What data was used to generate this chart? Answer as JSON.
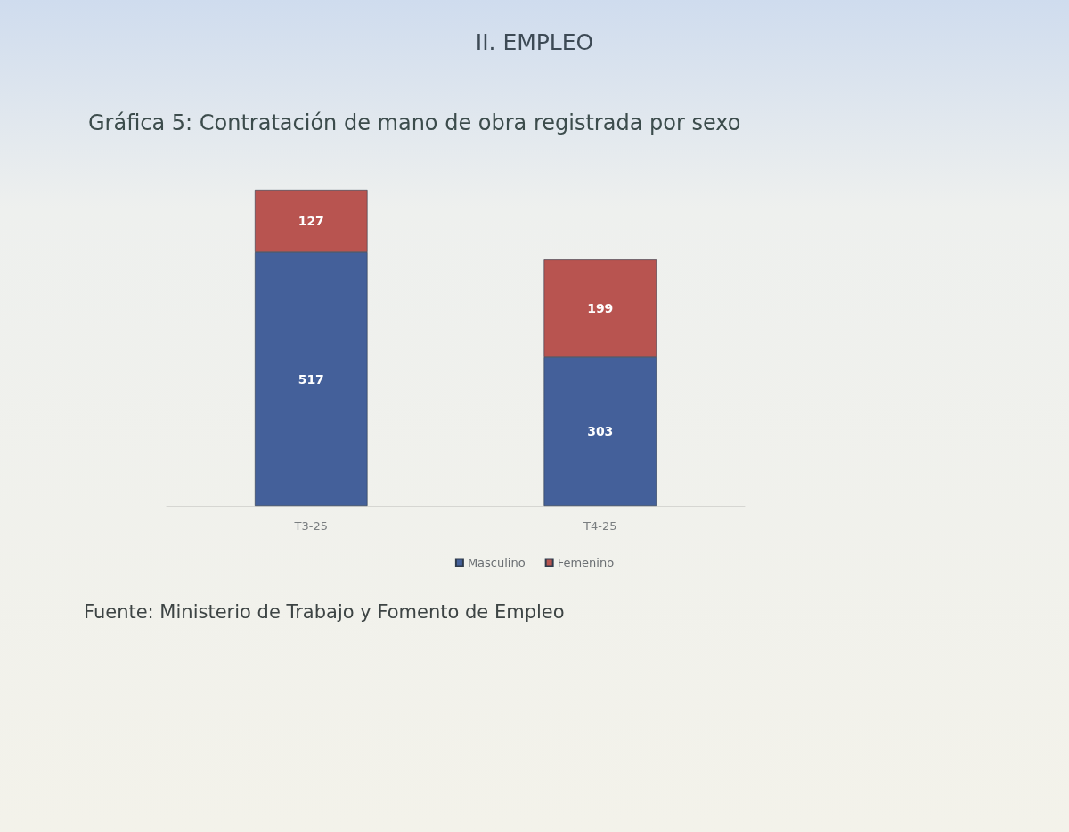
{
  "chart_data": {
    "type": "bar",
    "title": "II. EMPLEO",
    "subtitle": "Gráfica 5: Contratación de mano de obra registrada por sexo",
    "categories": [
      "T3-25",
      "T4-25"
    ],
    "series": [
      {
        "name": "Masculino",
        "color": "#44609a",
        "values": [
          517,
          303
        ]
      },
      {
        "name": "Femenino",
        "color": "#b85450",
        "values": [
          127,
          199
        ]
      }
    ],
    "stacked": true,
    "data_labels": true,
    "legend": "bottom",
    "tick_labels": "x",
    "annotations": [
      "Fuente: Ministerio de Trabajo y Fomento de Empleo"
    ]
  }
}
